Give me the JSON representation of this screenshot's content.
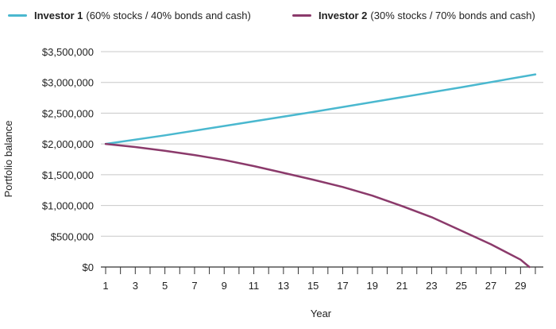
{
  "chart_data": {
    "type": "line",
    "title": "",
    "xlabel": "Year",
    "ylabel": "Portfolio balance",
    "xlim": [
      1,
      30
    ],
    "ylim": [
      0,
      3500000
    ],
    "x_ticks": [
      1,
      3,
      5,
      7,
      9,
      11,
      13,
      15,
      17,
      19,
      21,
      23,
      25,
      27,
      29
    ],
    "y_ticks": [
      {
        "value": 0,
        "label": "$0"
      },
      {
        "value": 500000,
        "label": "$500,000"
      },
      {
        "value": 1000000,
        "label": "$1,000,000"
      },
      {
        "value": 1500000,
        "label": "$1,500,000"
      },
      {
        "value": 2000000,
        "label": "$2,000,000"
      },
      {
        "value": 2500000,
        "label": "$2,500,000"
      },
      {
        "value": 3000000,
        "label": "$3,000,000"
      },
      {
        "value": 3500000,
        "label": "$3,500,000"
      }
    ],
    "grid": "horizontal",
    "legend": "top",
    "series": [
      {
        "name_bold": "Investor 1",
        "name_rest": "(60% stocks / 40% bonds and cash)",
        "color": "#4ab8cf",
        "x": [
          1,
          5,
          10,
          15,
          20,
          25,
          30
        ],
        "values": [
          2000000,
          2140000,
          2330000,
          2520000,
          2720000,
          2920000,
          3130000
        ]
      },
      {
        "name_bold": "Investor 2",
        "name_rest": "(30% stocks / 70% bonds and cash)",
        "color": "#8b3a6b",
        "x": [
          1,
          3,
          5,
          7,
          9,
          11,
          13,
          15,
          17,
          19,
          21,
          23,
          25,
          27,
          29,
          29.6
        ],
        "values": [
          2000000,
          1950000,
          1890000,
          1820000,
          1740000,
          1640000,
          1530000,
          1420000,
          1300000,
          1160000,
          990000,
          810000,
          590000,
          370000,
          120000,
          0
        ]
      }
    ]
  }
}
